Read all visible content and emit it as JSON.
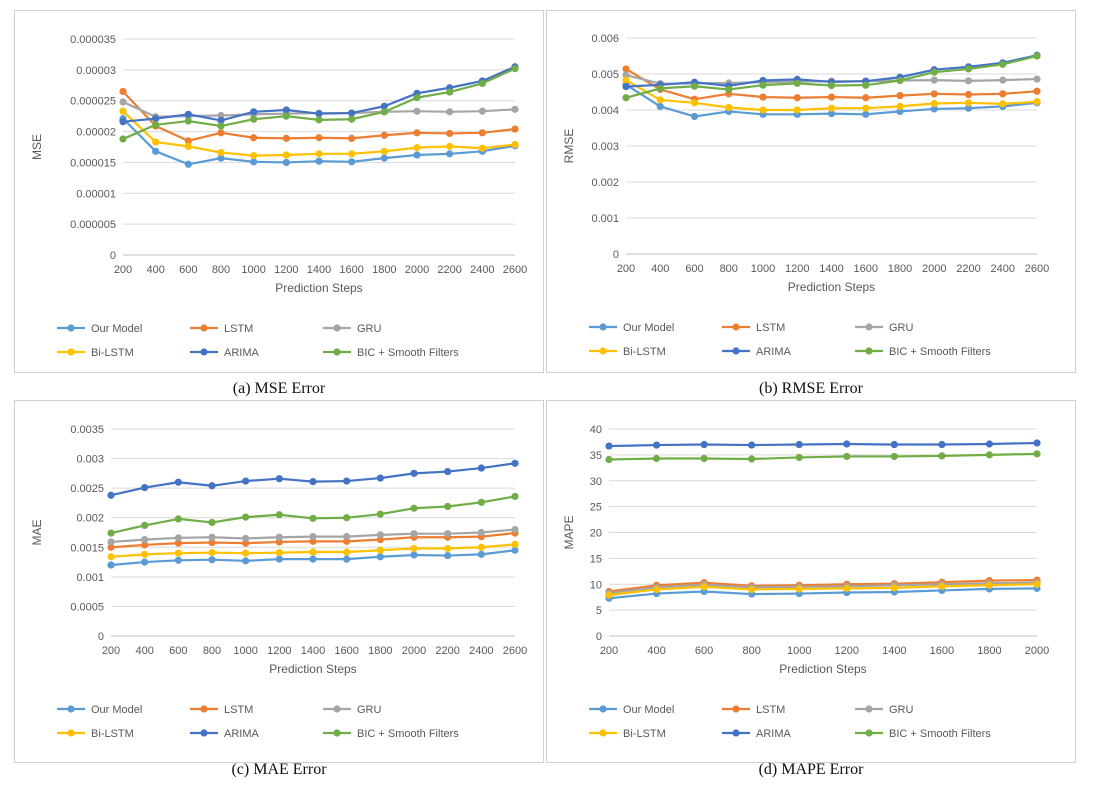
{
  "chart_data": [
    {
      "type": "line",
      "caption": "(a) MSE Error",
      "xlabel": "Prediction Steps",
      "ylabel": "MSE",
      "x": [
        200,
        400,
        600,
        800,
        1000,
        1200,
        1400,
        1600,
        1800,
        2000,
        2200,
        2400,
        2600
      ],
      "ylim": [
        0,
        3.5e-05
      ],
      "yticks": [
        "0",
        "0.000005",
        "0.00001",
        "0.000015",
        "0.00002",
        "0.000025",
        "0.00003",
        "0.000035"
      ],
      "series": [
        {
          "name": "Our Model",
          "color": "#5b9bd5",
          "values": [
            2.21e-05,
            1.68e-05,
            1.47e-05,
            1.57e-05,
            1.51e-05,
            1.5e-05,
            1.52e-05,
            1.51e-05,
            1.57e-05,
            1.62e-05,
            1.64e-05,
            1.68e-05,
            1.77e-05
          ]
        },
        {
          "name": "LSTM",
          "color": "#ed7d31",
          "values": [
            2.65e-05,
            2.09e-05,
            1.85e-05,
            1.98e-05,
            1.9e-05,
            1.89e-05,
            1.9e-05,
            1.89e-05,
            1.94e-05,
            1.98e-05,
            1.97e-05,
            1.98e-05,
            2.04e-05
          ]
        },
        {
          "name": "GRU",
          "color": "#a5a5a5",
          "values": [
            2.48e-05,
            2.24e-05,
            2.25e-05,
            2.26e-05,
            2.28e-05,
            2.29e-05,
            2.3e-05,
            2.3e-05,
            2.32e-05,
            2.33e-05,
            2.32e-05,
            2.33e-05,
            2.36e-05
          ]
        },
        {
          "name": "Bi-LSTM",
          "color": "#ffc000",
          "values": [
            2.33e-05,
            1.83e-05,
            1.76e-05,
            1.66e-05,
            1.61e-05,
            1.62e-05,
            1.64e-05,
            1.64e-05,
            1.68e-05,
            1.74e-05,
            1.76e-05,
            1.73e-05,
            1.79e-05
          ]
        },
        {
          "name": "ARIMA",
          "color": "#4472c4",
          "values": [
            2.16e-05,
            2.21e-05,
            2.28e-05,
            2.18e-05,
            2.32e-05,
            2.35e-05,
            2.29e-05,
            2.3e-05,
            2.41e-05,
            2.62e-05,
            2.71e-05,
            2.82e-05,
            3.05e-05
          ]
        },
        {
          "name": "BIC + Smooth Filters",
          "color": "#70ad47",
          "values": [
            1.88e-05,
            2.11e-05,
            2.17e-05,
            2.09e-05,
            2.2e-05,
            2.25e-05,
            2.19e-05,
            2.2e-05,
            2.32e-05,
            2.55e-05,
            2.64e-05,
            2.78e-05,
            3.02e-05
          ]
        }
      ]
    },
    {
      "type": "line",
      "caption": "(b) RMSE Error",
      "xlabel": "Prediction Steps",
      "ylabel": "RMSE",
      "x": [
        200,
        400,
        600,
        800,
        1000,
        1200,
        1400,
        1600,
        1800,
        2000,
        2200,
        2400,
        2600
      ],
      "ylim": [
        0,
        0.006
      ],
      "yticks": [
        "0",
        "0.001",
        "0.002",
        "0.003",
        "0.004",
        "0.005",
        "0.006"
      ],
      "series": [
        {
          "name": "Our Model",
          "color": "#5b9bd5",
          "values": [
            0.0047,
            0.0041,
            0.00382,
            0.00396,
            0.00388,
            0.00388,
            0.0039,
            0.00388,
            0.00396,
            0.00403,
            0.00405,
            0.0041,
            0.0042
          ]
        },
        {
          "name": "LSTM",
          "color": "#ed7d31",
          "values": [
            0.00514,
            0.00457,
            0.0043,
            0.00445,
            0.00436,
            0.00434,
            0.00436,
            0.00434,
            0.0044,
            0.00445,
            0.00443,
            0.00445,
            0.00452
          ]
        },
        {
          "name": "GRU",
          "color": "#a5a5a5",
          "values": [
            0.00497,
            0.00473,
            0.00474,
            0.00475,
            0.00477,
            0.00479,
            0.0048,
            0.0048,
            0.00482,
            0.00483,
            0.00481,
            0.00483,
            0.00486
          ]
        },
        {
          "name": "Bi-LSTM",
          "color": "#ffc000",
          "values": [
            0.00483,
            0.00428,
            0.0042,
            0.00407,
            0.004,
            0.004,
            0.00405,
            0.00405,
            0.0041,
            0.00418,
            0.0042,
            0.00417,
            0.00423
          ]
        },
        {
          "name": "ARIMA",
          "color": "#4472c4",
          "values": [
            0.00465,
            0.0047,
            0.00477,
            0.00467,
            0.00482,
            0.00485,
            0.00478,
            0.0048,
            0.00491,
            0.00512,
            0.0052,
            0.00531,
            0.00552
          ]
        },
        {
          "name": "BIC + Smooth Filters",
          "color": "#70ad47",
          "values": [
            0.00434,
            0.0046,
            0.00466,
            0.00457,
            0.00469,
            0.00474,
            0.00468,
            0.00469,
            0.00482,
            0.00505,
            0.00514,
            0.00527,
            0.0055
          ]
        }
      ]
    },
    {
      "type": "line",
      "caption": "(c) MAE Error",
      "xlabel": "Prediction Steps",
      "ylabel": "MAE",
      "x": [
        200,
        400,
        600,
        800,
        1000,
        1200,
        1400,
        1600,
        1800,
        2000,
        2200,
        2400,
        2600
      ],
      "ylim": [
        0,
        0.0035
      ],
      "yticks": [
        "0",
        "0.0005",
        "0.001",
        "0.0015",
        "0.002",
        "0.0025",
        "0.003",
        "0.0035"
      ],
      "series": [
        {
          "name": "Our Model",
          "color": "#5b9bd5",
          "values": [
            0.0012,
            0.00125,
            0.00128,
            0.00129,
            0.00127,
            0.0013,
            0.0013,
            0.0013,
            0.00134,
            0.00137,
            0.00136,
            0.00138,
            0.00145
          ]
        },
        {
          "name": "LSTM",
          "color": "#ed7d31",
          "values": [
            0.0015,
            0.00154,
            0.00157,
            0.00158,
            0.00157,
            0.00159,
            0.0016,
            0.0016,
            0.00163,
            0.00167,
            0.00167,
            0.00168,
            0.00174
          ]
        },
        {
          "name": "GRU",
          "color": "#a5a5a5",
          "values": [
            0.00159,
            0.00163,
            0.00166,
            0.00167,
            0.00165,
            0.00167,
            0.00168,
            0.00168,
            0.00171,
            0.00173,
            0.00173,
            0.00175,
            0.0018
          ]
        },
        {
          "name": "Bi-LSTM",
          "color": "#ffc000",
          "values": [
            0.00134,
            0.00138,
            0.0014,
            0.00141,
            0.0014,
            0.00141,
            0.00142,
            0.00142,
            0.00145,
            0.00148,
            0.00148,
            0.0015,
            0.00155
          ]
        },
        {
          "name": "ARIMA",
          "color": "#4472c4",
          "values": [
            0.00238,
            0.00251,
            0.0026,
            0.00254,
            0.00262,
            0.00266,
            0.00261,
            0.00262,
            0.00267,
            0.00275,
            0.00278,
            0.00284,
            0.00292
          ]
        },
        {
          "name": "BIC + Smooth Filters",
          "color": "#70ad47",
          "values": [
            0.00174,
            0.00187,
            0.00198,
            0.00192,
            0.00201,
            0.00205,
            0.00199,
            0.002,
            0.00206,
            0.00216,
            0.00219,
            0.00226,
            0.00236
          ]
        }
      ]
    },
    {
      "type": "line",
      "caption": "(d) MAPE Error",
      "xlabel": "Prediction Steps",
      "ylabel": "MAPE",
      "x": [
        200,
        400,
        600,
        800,
        1000,
        1200,
        1400,
        1600,
        1800,
        2000
      ],
      "ylim": [
        0,
        40
      ],
      "yticks": [
        "0",
        "5",
        "10",
        "15",
        "20",
        "25",
        "30",
        "35",
        "40"
      ],
      "series": [
        {
          "name": "Our Model",
          "color": "#5b9bd5",
          "values": [
            7.3,
            8.2,
            8.6,
            8.1,
            8.2,
            8.4,
            8.5,
            8.8,
            9.1,
            9.2
          ]
        },
        {
          "name": "LSTM",
          "color": "#ed7d31",
          "values": [
            8.6,
            9.8,
            10.3,
            9.7,
            9.8,
            10,
            10.1,
            10.4,
            10.7,
            10.8
          ]
        },
        {
          "name": "GRU",
          "color": "#a5a5a5",
          "values": [
            8.3,
            9.4,
            9.9,
            9.4,
            9.5,
            9.6,
            9.8,
            10,
            10.2,
            10.3
          ]
        },
        {
          "name": "Bi-LSTM",
          "color": "#ffc000",
          "values": [
            7.9,
            9,
            9.5,
            9,
            9.1,
            9.2,
            9.3,
            9.6,
            9.8,
            10
          ]
        },
        {
          "name": "ARIMA",
          "color": "#4472c4",
          "values": [
            36.7,
            36.9,
            37,
            36.9,
            37,
            37.1,
            37,
            37,
            37.1,
            37.3
          ]
        },
        {
          "name": "BIC + Smooth Filters",
          "color": "#70ad47",
          "values": [
            34.1,
            34.3,
            34.3,
            34.2,
            34.5,
            34.7,
            34.7,
            34.8,
            35,
            35.2
          ]
        }
      ]
    }
  ]
}
